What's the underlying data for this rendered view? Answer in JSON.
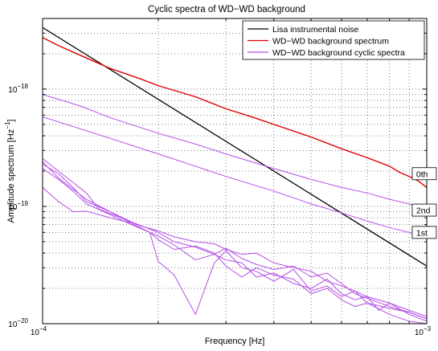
{
  "chart_data": {
    "type": "line",
    "title": "Cyclic spectra of WD−WD background",
    "xlabel": "Frequency [Hz]",
    "ylabel": "Amplitude spectrum [Hz",
    "ylabel_sup": "−1",
    "ylabel_end": "]",
    "xscale": "log",
    "yscale": "log",
    "xlim": [
      0.0001,
      0.001
    ],
    "ylim": [
      1e-20,
      4e-18
    ],
    "grid": true,
    "legend_position": "top-right",
    "x_ticks": [
      {
        "mantissa": "10",
        "exp": "−4"
      },
      {
        "mantissa": "10",
        "exp": "−3"
      }
    ],
    "y_ticks": [
      {
        "mantissa": "10",
        "exp": "−20"
      },
      {
        "mantissa": "10",
        "exp": "−19"
      },
      {
        "mantissa": "10",
        "exp": "−18"
      }
    ],
    "legend": [
      {
        "label": "Lisa instrumental noise",
        "color": "#000000"
      },
      {
        "label": "WD−WD background spectrum",
        "color": "#e00000"
      },
      {
        "label": "WD−WD background cyclic spectra",
        "color": "#b44ee8"
      }
    ],
    "annotations": [
      {
        "text": "0th",
        "x": 0.00093,
        "y": 1.9e-19
      },
      {
        "text": "2nd",
        "x": 0.00093,
        "y": 9.3e-20
      },
      {
        "text": "1st",
        "x": 0.00093,
        "y": 6e-20
      }
    ],
    "series": [
      {
        "name": "Lisa instrumental noise",
        "color": "#000000",
        "x": [
          0.0001,
          0.001
        ],
        "y": [
          3.35e-18,
          3.1e-20
        ]
      },
      {
        "name": "WD−WD background spectrum",
        "color": "#e00000",
        "x": [
          0.0001,
          0.00011,
          0.000125,
          0.00015,
          0.00018,
          0.0002,
          0.00025,
          0.0003,
          0.00035,
          0.0004,
          0.0005,
          0.0006,
          0.0007,
          0.0008,
          0.00085,
          0.0009,
          0.00095,
          0.001
        ],
        "y": [
          2.75e-18,
          2.35e-18,
          1.95e-18,
          1.5e-18,
          1.22e-18,
          1.07e-18,
          8.6e-19,
          6.8e-19,
          5.8e-19,
          5e-19,
          3.9e-19,
          3.1e-19,
          2.6e-19,
          2.2e-19,
          1.95e-19,
          1.8e-19,
          1.65e-19,
          1.45e-19
        ]
      },
      {
        "name": "WD−WD background cyclic spectra",
        "color": "#b44ee8",
        "x": [
          0.0001,
          0.000125,
          0.00015,
          0.0002,
          0.00025,
          0.0003,
          0.0004,
          0.0005,
          0.0006,
          0.0007,
          0.0008,
          0.0009,
          0.001
        ],
        "y": [
          9e-19,
          7.2e-19,
          5.7e-19,
          4.2e-19,
          3.4e-19,
          2.8e-19,
          2.1e-19,
          1.7e-19,
          1.45e-19,
          1.3e-19,
          1.15e-19,
          1.05e-19,
          9.3e-20
        ]
      },
      {
        "name": "",
        "color": "#b44ee8",
        "x": [
          0.0001,
          0.000125,
          0.00015,
          0.0002,
          0.00025,
          0.0003,
          0.0004,
          0.0005,
          0.0006,
          0.0007,
          0.0008,
          0.0009,
          0.001
        ],
        "y": [
          5.8e-19,
          4.6e-19,
          3.8e-19,
          2.8e-19,
          2.2e-19,
          1.8e-19,
          1.35e-19,
          1.05e-19,
          8.8e-20,
          7.5e-20,
          6.6e-20,
          6e-20,
          5.5e-20
        ]
      },
      {
        "name": "",
        "color": "#b44ee8",
        "x": [
          0.0001,
          0.00011,
          0.00012,
          0.00013,
          0.00014,
          0.00016,
          0.00018,
          0.0002,
          0.00022,
          0.00025,
          0.00028,
          0.0003,
          0.00033,
          0.00036,
          0.0004,
          0.00045,
          0.0005,
          0.00055,
          0.0006,
          0.00065,
          0.0007,
          0.0008,
          0.0009,
          0.001
        ],
        "y": [
          2.55e-19,
          2e-19,
          1.6e-19,
          1.3e-19,
          9.5e-20,
          8e-20,
          6.8e-20,
          6.2e-20,
          5.5e-20,
          5e-20,
          4.8e-20,
          4.3e-20,
          3.9e-20,
          4e-20,
          3.3e-20,
          3e-20,
          2.8e-20,
          2.3e-20,
          2.1e-20,
          1.9e-20,
          1.7e-20,
          1.5e-20,
          1.3e-20,
          1.15e-20
        ]
      },
      {
        "name": "",
        "color": "#b44ee8",
        "x": [
          0.0001,
          0.00011,
          0.00012,
          0.00013,
          0.00015,
          0.00017,
          0.0002,
          0.00022,
          0.00025,
          0.00028,
          0.0003,
          0.00033,
          0.00036,
          0.0004,
          0.00045,
          0.0005,
          0.00055,
          0.0006,
          0.00065,
          0.0007,
          0.0008,
          0.0009,
          0.001
        ],
        "y": [
          2.3e-19,
          1.9e-19,
          1.45e-19,
          1.1e-19,
          9e-20,
          7.4e-20,
          6e-20,
          5e-20,
          4.5e-20,
          3.9e-20,
          4.4e-20,
          3.6e-20,
          3.2e-20,
          2.9e-20,
          3.1e-20,
          2.5e-20,
          2.7e-20,
          2.2e-20,
          1.8e-20,
          1.65e-20,
          1.4e-20,
          1.25e-20,
          1.1e-20
        ]
      },
      {
        "name": "",
        "color": "#b44ee8",
        "x": [
          0.0001,
          0.00011,
          0.00012,
          0.00013,
          0.00015,
          0.00017,
          0.0002,
          0.00022,
          0.00025,
          0.00028,
          0.0003,
          0.00033,
          0.00036,
          0.0004,
          0.00045,
          0.0005,
          0.00055,
          0.0006,
          0.00065,
          0.0007,
          0.00075,
          0.0008,
          0.0009,
          0.001
        ],
        "y": [
          2.1e-19,
          1.7e-19,
          1.35e-19,
          1.05e-19,
          8.5e-20,
          7e-20,
          5.6e-20,
          4.7e-20,
          3.5e-20,
          3.9e-20,
          3.5e-20,
          3.3e-20,
          2.5e-20,
          2.7e-20,
          2.2e-20,
          2e-20,
          2.4e-20,
          1.8e-20,
          1.6e-20,
          1.7e-20,
          1.3e-20,
          1.5e-20,
          1.2e-20,
          1.05e-20
        ]
      },
      {
        "name": "",
        "color": "#b44ee8",
        "x": [
          0.0001,
          0.00011,
          0.00012,
          0.00013,
          0.00015,
          0.00017,
          0.00019,
          0.0002,
          0.00022,
          0.00025,
          0.00028,
          0.0003,
          0.00033,
          0.00036,
          0.0004,
          0.00045,
          0.0005,
          0.00055,
          0.0006,
          0.00065,
          0.0007,
          0.0008,
          0.0009,
          0.001
        ],
        "y": [
          2.4e-19,
          1.75e-19,
          1.4e-19,
          1.15e-19,
          9e-20,
          7.2e-20,
          6e-20,
          3.4e-20,
          2.6e-20,
          1.2e-20,
          3.3e-20,
          4.2e-20,
          3e-20,
          2.8e-20,
          2.3e-20,
          2.9e-20,
          1.9e-20,
          2.1e-20,
          1.7e-20,
          1.9e-20,
          1.5e-20,
          1.35e-20,
          1.25e-20,
          1.1e-20
        ]
      },
      {
        "name": "",
        "color": "#b44ee8",
        "x": [
          0.0001,
          0.00011,
          0.00012,
          0.00013,
          0.00015,
          0.00017,
          0.00019,
          0.0002,
          0.00022,
          0.00025,
          0.00028,
          0.0003,
          0.00033,
          0.00036,
          0.0004,
          0.00045,
          0.0005,
          0.00055,
          0.0006,
          0.00065,
          0.0007,
          0.0008,
          0.0009,
          0.001
        ],
        "y": [
          1.45e-19,
          1.1e-19,
          9e-20,
          9.1e-20,
          8e-20,
          7.2e-20,
          6e-20,
          5.2e-20,
          4.3e-20,
          4.6e-20,
          4e-20,
          3.1e-20,
          2.5e-20,
          3e-20,
          2.6e-20,
          2.4e-20,
          1.8e-20,
          2e-20,
          1.6e-20,
          1.4e-20,
          1.5e-20,
          1.2e-20,
          1.05e-20,
          1e-20
        ]
      }
    ]
  }
}
